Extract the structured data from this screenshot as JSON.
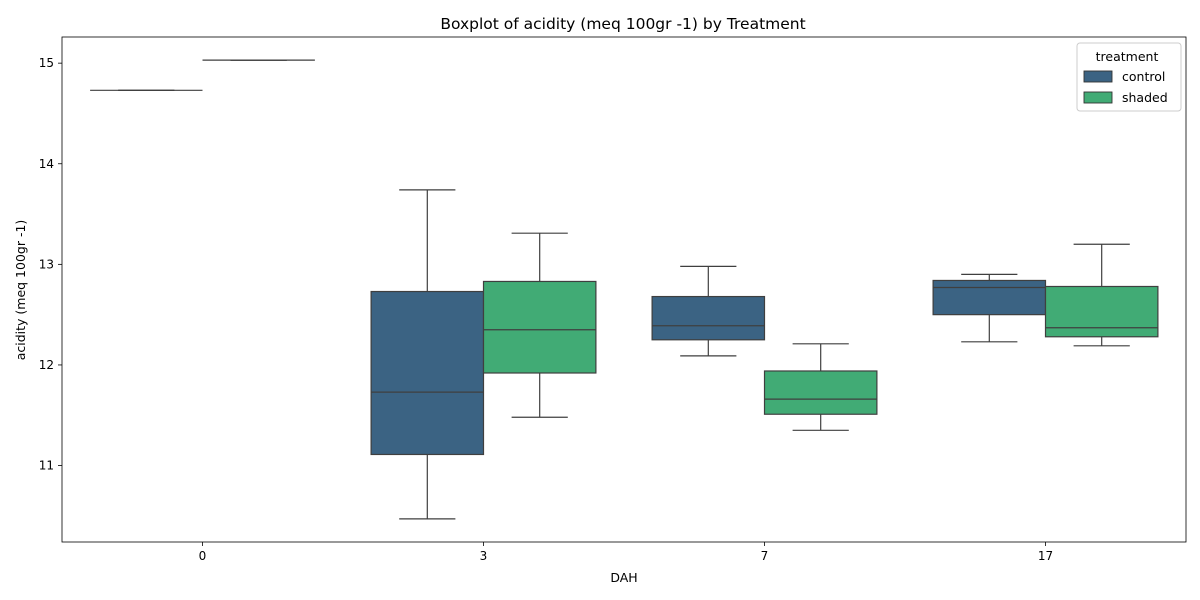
{
  "chart_data": {
    "type": "box",
    "title": "Boxplot of  acidity (meq 100gr -1) by Treatment",
    "xlabel": "DAH",
    "ylabel": "acidity (meq 100gr -1)",
    "categories": [
      "0",
      "3",
      "7",
      "17"
    ],
    "ylim": [
      10.24,
      15.26
    ],
    "yticks": [
      11,
      12,
      13,
      14,
      15
    ],
    "grid": false,
    "legend": {
      "title": "treatment",
      "placement": "top-right"
    },
    "series": [
      {
        "name": "control",
        "color": "#3b6383",
        "boxes": [
          {
            "category": "0",
            "min": 14.73,
            "q1": 14.73,
            "median": 14.73,
            "q3": 14.73,
            "max": 14.73
          },
          {
            "category": "3",
            "min": 10.47,
            "q1": 11.11,
            "median": 11.73,
            "q3": 12.73,
            "max": 13.74
          },
          {
            "category": "7",
            "min": 12.09,
            "q1": 12.25,
            "median": 12.39,
            "q3": 12.68,
            "max": 12.98
          },
          {
            "category": "17",
            "min": 12.23,
            "q1": 12.5,
            "median": 12.77,
            "q3": 12.84,
            "max": 12.9
          }
        ]
      },
      {
        "name": "shaded",
        "color": "#41ab75",
        "boxes": [
          {
            "category": "0",
            "min": 15.03,
            "q1": 15.03,
            "median": 15.03,
            "q3": 15.03,
            "max": 15.03
          },
          {
            "category": "3",
            "min": 11.48,
            "q1": 11.92,
            "median": 12.35,
            "q3": 12.83,
            "max": 13.31
          },
          {
            "category": "7",
            "min": 11.35,
            "q1": 11.51,
            "median": 11.66,
            "q3": 11.94,
            "max": 12.21
          },
          {
            "category": "17",
            "min": 12.19,
            "q1": 12.28,
            "median": 12.37,
            "q3": 12.78,
            "max": 13.2
          }
        ]
      }
    ]
  }
}
